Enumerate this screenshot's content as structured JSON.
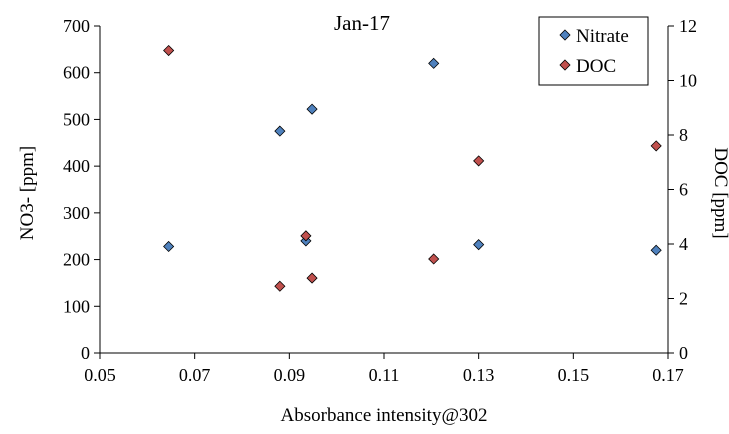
{
  "chart_data": {
    "type": "scatter",
    "title": "Jan-17",
    "xlabel": "Absorbance intensity@302",
    "ylabel_left": "NO3- [ppm]",
    "ylabel_right": "DOC [ppm]",
    "xlim": [
      0.05,
      0.17
    ],
    "ylim_left": [
      0,
      700
    ],
    "ylim_right": [
      0,
      12
    ],
    "xticks": [
      "0.05",
      "0.07",
      "0.09",
      "0.11",
      "0.13",
      "0.15",
      "0.17"
    ],
    "yticks_left": [
      "0",
      "100",
      "200",
      "300",
      "400",
      "500",
      "600",
      "700"
    ],
    "yticks_right": [
      "0",
      "2",
      "4",
      "6",
      "8",
      "10",
      "12"
    ],
    "grid": false,
    "legend_position": "top-right",
    "series": [
      {
        "name": "Nitrate",
        "axis": "left",
        "color": "#4F81BD",
        "marker": "diamond",
        "x": [
          0.0645,
          0.088,
          0.0935,
          0.0948,
          0.1205,
          0.13,
          0.1675
        ],
        "y": [
          228,
          475,
          240,
          522,
          620,
          232,
          220
        ]
      },
      {
        "name": "DOC",
        "axis": "right",
        "color": "#C0504D",
        "marker": "diamond",
        "x": [
          0.0645,
          0.088,
          0.0935,
          0.0948,
          0.1205,
          0.13,
          0.1675
        ],
        "y": [
          11.1,
          2.45,
          4.3,
          2.75,
          3.45,
          7.05,
          7.6
        ]
      }
    ]
  }
}
